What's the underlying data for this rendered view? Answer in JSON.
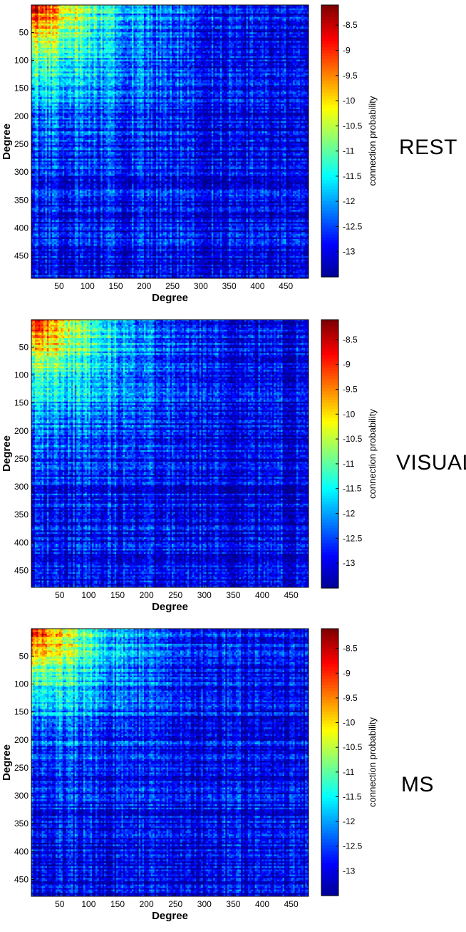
{
  "figure_colors": {
    "colormap": [
      "#00008f",
      "#0000ff",
      "#0080ff",
      "#00ffff",
      "#80ff80",
      "#ffff00",
      "#ff8000",
      "#ff0000",
      "#800000"
    ],
    "frame": "#000000",
    "text": "#000000"
  },
  "chart_data": [
    {
      "type": "heatmap",
      "panel_label": "REST",
      "xlabel": "Degree",
      "ylabel": "Degree",
      "x_ticks": [
        50,
        100,
        150,
        200,
        250,
        300,
        350,
        400,
        450
      ],
      "y_ticks": [
        50,
        100,
        150,
        200,
        250,
        300,
        350,
        400,
        450
      ],
      "xlim": [
        1,
        490
      ],
      "ylim": [
        1,
        490
      ],
      "y_reversed": true,
      "colorbar": {
        "label": "connection probability",
        "ticks": [
          "-8.5",
          "-9",
          "-9.5",
          "-10",
          "-10.5",
          "-11",
          "-11.5",
          "-12",
          "-12.5",
          "-13"
        ],
        "range": [
          -13.5,
          -8.1
        ]
      },
      "hotspot": {
        "peak_value": -8.3,
        "background_value": -13.0,
        "decay_scale": 120
      }
    },
    {
      "type": "heatmap",
      "panel_label": "VISUAL",
      "xlabel": "Degree",
      "ylabel": "Degree",
      "x_ticks": [
        50,
        100,
        150,
        200,
        250,
        300,
        350,
        400,
        450
      ],
      "y_ticks": [
        50,
        100,
        150,
        200,
        250,
        300,
        350,
        400,
        450
      ],
      "xlim": [
        1,
        480
      ],
      "ylim": [
        1,
        480
      ],
      "y_reversed": true,
      "colorbar": {
        "label": "connection probability",
        "ticks": [
          "-8.5",
          "-9",
          "-9.5",
          "-10",
          "-10.5",
          "-11",
          "-11.5",
          "-12",
          "-12.5",
          "-13"
        ],
        "range": [
          -13.5,
          -8.1
        ]
      },
      "hotspot": {
        "peak_value": -8.3,
        "background_value": -13.0,
        "decay_scale": 115
      }
    },
    {
      "type": "heatmap",
      "panel_label": "MS",
      "xlabel": "Degree",
      "ylabel": "Degree",
      "x_ticks": [
        50,
        100,
        150,
        200,
        250,
        300,
        350,
        400,
        450
      ],
      "y_ticks": [
        50,
        100,
        150,
        200,
        250,
        300,
        350,
        400,
        450
      ],
      "xlim": [
        1,
        480
      ],
      "ylim": [
        1,
        480
      ],
      "y_reversed": true,
      "colorbar": {
        "label": "connection probability",
        "ticks": [
          "-8.5",
          "-9",
          "-9.5",
          "-10",
          "-10.5",
          "-11",
          "-11.5",
          "-12",
          "-12.5",
          "-13"
        ],
        "range": [
          -13.5,
          -8.1
        ]
      },
      "hotspot": {
        "peak_value": -8.3,
        "background_value": -13.0,
        "decay_scale": 110
      }
    }
  ]
}
